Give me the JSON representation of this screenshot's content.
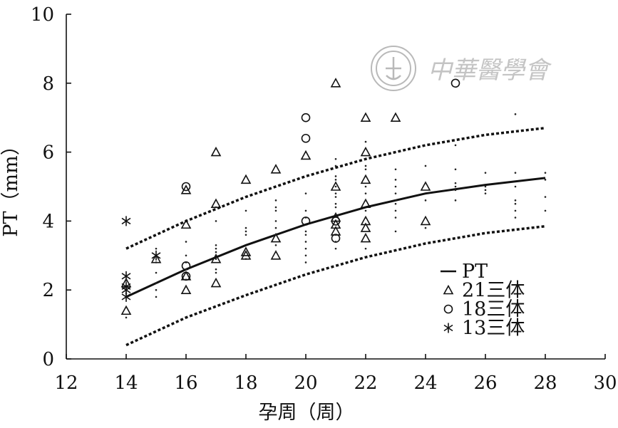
{
  "chart_data": {
    "type": "scatter",
    "title": "",
    "xlabel": "孕周（周）",
    "ylabel": "PT（mm）",
    "xlim": [
      12,
      30
    ],
    "ylim": [
      0,
      10
    ],
    "xticks": [
      12,
      14,
      16,
      18,
      20,
      22,
      24,
      26,
      28,
      30
    ],
    "yticks": [
      0,
      2,
      4,
      6,
      8,
      10
    ],
    "grid": false,
    "legend_position": "right",
    "curves": [
      {
        "name": "PT",
        "style": "solid",
        "x": [
          14,
          16,
          18,
          20,
          22,
          24,
          26,
          28
        ],
        "y": [
          1.8,
          2.6,
          3.3,
          3.9,
          4.4,
          4.8,
          5.05,
          5.25
        ]
      },
      {
        "name": "",
        "style": "dashed",
        "x": [
          14,
          16,
          18,
          20,
          22,
          24,
          26,
          28
        ],
        "y": [
          3.2,
          4.0,
          4.7,
          5.3,
          5.8,
          6.2,
          6.5,
          6.7
        ]
      },
      {
        "name": "",
        "style": "dashed",
        "x": [
          14,
          16,
          18,
          20,
          22,
          24,
          26,
          28
        ],
        "y": [
          0.4,
          1.2,
          1.85,
          2.45,
          2.95,
          3.35,
          3.65,
          3.85
        ]
      }
    ],
    "series": [
      {
        "name": "21三体",
        "marker": "triangle",
        "points": [
          [
            14,
            1.4
          ],
          [
            14,
            2.2
          ],
          [
            15,
            2.9
          ],
          [
            16,
            2.0
          ],
          [
            16,
            2.4
          ],
          [
            16,
            3.9
          ],
          [
            16,
            4.9
          ],
          [
            17,
            2.2
          ],
          [
            17,
            2.9
          ],
          [
            17,
            4.5
          ],
          [
            17,
            6.0
          ],
          [
            18,
            3.0
          ],
          [
            18,
            3.1
          ],
          [
            18,
            5.2
          ],
          [
            19,
            3.0
          ],
          [
            19,
            3.5
          ],
          [
            19,
            5.5
          ],
          [
            20,
            5.9
          ],
          [
            21,
            3.7
          ],
          [
            21,
            3.9
          ],
          [
            21,
            4.1
          ],
          [
            21,
            5.0
          ],
          [
            21,
            8.0
          ],
          [
            22,
            3.5
          ],
          [
            22,
            3.8
          ],
          [
            22,
            4.0
          ],
          [
            22,
            4.5
          ],
          [
            22,
            5.2
          ],
          [
            22,
            6.0
          ],
          [
            22,
            7.0
          ],
          [
            23,
            7.0
          ],
          [
            24,
            4.0
          ],
          [
            24,
            5.0
          ]
        ]
      },
      {
        "name": "18三体",
        "marker": "circle",
        "points": [
          [
            16,
            2.4
          ],
          [
            16,
            2.7
          ],
          [
            16,
            5.0
          ],
          [
            20,
            4.0
          ],
          [
            20,
            6.4
          ],
          [
            20,
            7.0
          ],
          [
            21,
            3.5
          ],
          [
            21,
            4.0
          ],
          [
            25,
            8.0
          ]
        ]
      },
      {
        "name": "13三体",
        "marker": "asterisk",
        "points": [
          [
            14,
            1.8
          ],
          [
            14,
            2.0
          ],
          [
            14,
            2.1
          ],
          [
            14,
            2.4
          ],
          [
            14,
            4.0
          ],
          [
            15,
            3.0
          ]
        ]
      },
      {
        "name": "",
        "marker": "dot",
        "points": [
          [
            14,
            1.2
          ],
          [
            14,
            1.5
          ],
          [
            14,
            1.9
          ],
          [
            14,
            2.3
          ],
          [
            15,
            1.8
          ],
          [
            15,
            2.0
          ],
          [
            15,
            2.2
          ],
          [
            15,
            2.5
          ],
          [
            15,
            2.8
          ],
          [
            15,
            3.2
          ],
          [
            16,
            2.1
          ],
          [
            16,
            2.3
          ],
          [
            16,
            2.6
          ],
          [
            16,
            2.8
          ],
          [
            16,
            3.0
          ],
          [
            16,
            3.4
          ],
          [
            17,
            2.5
          ],
          [
            17,
            2.6
          ],
          [
            17,
            2.9
          ],
          [
            17,
            3.1
          ],
          [
            17,
            3.2
          ],
          [
            17,
            3.3
          ],
          [
            17,
            4.0
          ],
          [
            17,
            4.4
          ],
          [
            18,
            2.9
          ],
          [
            18,
            3.6
          ],
          [
            18,
            3.7
          ],
          [
            18,
            3.8
          ],
          [
            18,
            4.3
          ],
          [
            19,
            3.1
          ],
          [
            19,
            3.3
          ],
          [
            19,
            3.6
          ],
          [
            19,
            3.8
          ],
          [
            19,
            4.0
          ],
          [
            19,
            4.3
          ],
          [
            19,
            4.4
          ],
          [
            19,
            4.6
          ],
          [
            20,
            2.8
          ],
          [
            20,
            3.0
          ],
          [
            20,
            3.2
          ],
          [
            20,
            3.4
          ],
          [
            20,
            3.6
          ],
          [
            20,
            3.7
          ],
          [
            20,
            4.1
          ],
          [
            20,
            4.3
          ],
          [
            20,
            4.8
          ],
          [
            21,
            3.2
          ],
          [
            21,
            3.4
          ],
          [
            21,
            3.6
          ],
          [
            21,
            4.2
          ],
          [
            21,
            4.4
          ],
          [
            21,
            4.5
          ],
          [
            21,
            4.7
          ],
          [
            21,
            4.8
          ],
          [
            21,
            5.0
          ],
          [
            21,
            5.2
          ],
          [
            21,
            5.3
          ],
          [
            21,
            5.6
          ],
          [
            21,
            5.8
          ],
          [
            22,
            3.2
          ],
          [
            22,
            3.6
          ],
          [
            22,
            4.1
          ],
          [
            22,
            4.3
          ],
          [
            22,
            4.6
          ],
          [
            22,
            4.8
          ],
          [
            22,
            5.0
          ],
          [
            22,
            5.3
          ],
          [
            22,
            5.5
          ],
          [
            22,
            5.6
          ],
          [
            22,
            6.3
          ],
          [
            23,
            3.7
          ],
          [
            23,
            4.1
          ],
          [
            23,
            4.3
          ],
          [
            23,
            4.5
          ],
          [
            23,
            4.6
          ],
          [
            23,
            4.8
          ],
          [
            23,
            5.0
          ],
          [
            23,
            5.2
          ],
          [
            23,
            5.5
          ],
          [
            24,
            3.8
          ],
          [
            24,
            4.6
          ],
          [
            24,
            5.1
          ],
          [
            24,
            5.6
          ],
          [
            25,
            4.6
          ],
          [
            25,
            4.9
          ],
          [
            25,
            5.0
          ],
          [
            25,
            5.1
          ],
          [
            25,
            5.5
          ],
          [
            25,
            6.2
          ],
          [
            26,
            4.8
          ],
          [
            26,
            4.9
          ],
          [
            26,
            5.0
          ],
          [
            26,
            5.4
          ],
          [
            27,
            4.1
          ],
          [
            27,
            4.3
          ],
          [
            27,
            4.5
          ],
          [
            27,
            4.6
          ],
          [
            27,
            5.0
          ],
          [
            27,
            5.4
          ],
          [
            27,
            7.1
          ],
          [
            28,
            4.3
          ],
          [
            28,
            4.7
          ],
          [
            28,
            5.2
          ],
          [
            28,
            5.4
          ]
        ]
      }
    ],
    "legend": [
      {
        "label": "PT",
        "marker": "line"
      },
      {
        "label": "21三体",
        "marker": "triangle"
      },
      {
        "label": "18三体",
        "marker": "circle"
      },
      {
        "label": "13三体",
        "marker": "asterisk"
      }
    ],
    "watermark": "中華醫學會"
  }
}
